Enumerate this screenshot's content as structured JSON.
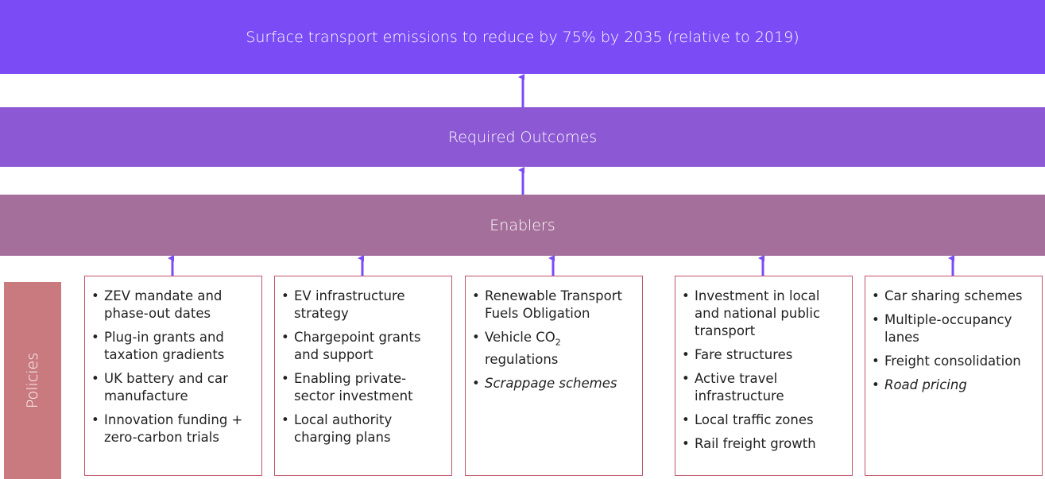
{
  "goal": "Surface transport emissions to reduce by 75% by 2035 (relative to 2019)",
  "outcomes": "Required Outcomes",
  "enablers": "Enablers",
  "policies_label": "Policies",
  "policy_boxes": [
    {
      "items": [
        {
          "text": "ZEV mandate and phase-out dates"
        },
        {
          "text": "Plug-in grants and taxation gradients"
        },
        {
          "text": "UK battery and car manufacture"
        },
        {
          "text": "Innovation funding + zero-carbon trials"
        }
      ]
    },
    {
      "items": [
        {
          "text": "EV infrastructure strategy"
        },
        {
          "text": "Chargepoint grants and support"
        },
        {
          "text": "Enabling private-sector investment"
        },
        {
          "text": "Local authority charging plans"
        }
      ]
    },
    {
      "items": [
        {
          "text": "Renewable Transport Fuels Obligation"
        },
        {
          "text": "Vehicle CO",
          "sub": "2",
          "after": " regulations"
        },
        {
          "text": "Scrappage schemes",
          "italic": true
        }
      ]
    },
    {
      "items": [
        {
          "text": "Investment in local and national public transport"
        },
        {
          "text": "Fare structures"
        },
        {
          "text": "Active travel infrastructure"
        },
        {
          "text": "Local traffic zones"
        },
        {
          "text": "Rail freight growth"
        }
      ]
    },
    {
      "items": [
        {
          "text": "Car sharing schemes"
        },
        {
          "text": "Multiple-occupancy lanes"
        },
        {
          "text": "Freight consolidation"
        },
        {
          "text": "Road pricing",
          "italic": true
        }
      ]
    }
  ]
}
